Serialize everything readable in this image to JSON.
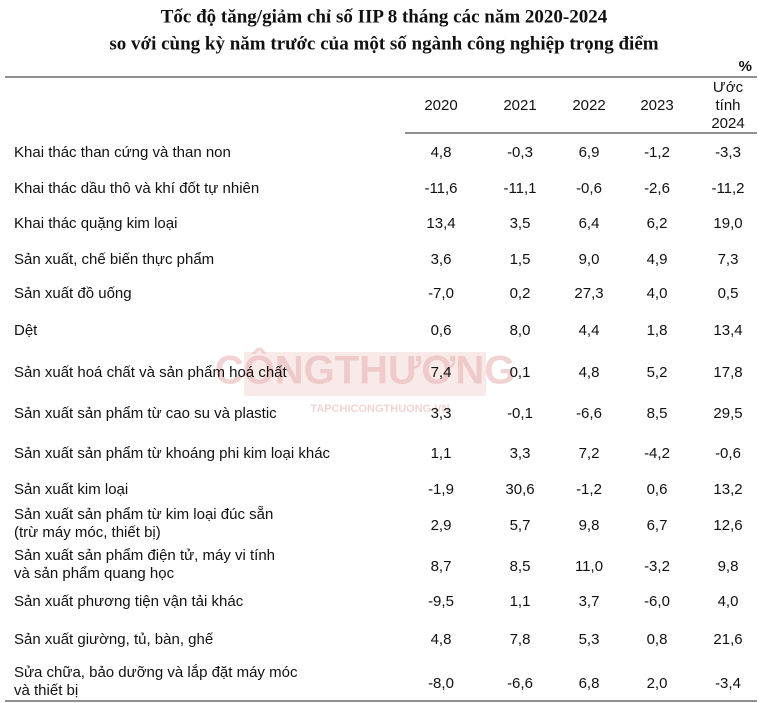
{
  "title": [
    "Tốc độ tăng/giảm chỉ số IIP 8 tháng các năm 2020-2024",
    "so với cùng kỳ năm trước của một số ngành công nghiệp trọng điểm"
  ],
  "unit": "%",
  "watermark": [
    "CÔNGTHƯƠNG",
    "TAPCHICONGTHUONG.VN"
  ],
  "table": {
    "header": [
      [
        "2020"
      ],
      [
        "2021"
      ],
      [
        "2022"
      ],
      [
        "2023"
      ],
      [
        "Ước",
        "tính",
        "2024"
      ]
    ],
    "rows": [
      {
        "label": [
          "Khai thác than cứng và than non"
        ],
        "values": [
          "4,8",
          "-0,3",
          "6,9",
          "-1,2",
          "-3,3"
        ]
      },
      {
        "label": [
          "Khai thác dầu thô và khí đốt tự nhiên"
        ],
        "values": [
          "-11,6",
          "-11,1",
          "-0,6",
          "-2,6",
          "-11,2"
        ]
      },
      {
        "label": [
          "Khai thác quặng kim loại"
        ],
        "values": [
          "13,4",
          "3,5",
          "6,4",
          "6,2",
          "19,0"
        ]
      },
      {
        "label": [
          "Sản xuất, chế biến thực phẩm"
        ],
        "values": [
          "3,6",
          "1,5",
          "9,0",
          "4,9",
          "7,3"
        ]
      },
      {
        "label": [
          "Sản xuất đồ uống"
        ],
        "values": [
          "-7,0",
          "0,2",
          "27,3",
          "4,0",
          "0,5"
        ]
      },
      {
        "label": [
          "Dệt"
        ],
        "values": [
          "0,6",
          "8,0",
          "4,4",
          "1,8",
          "13,4"
        ]
      },
      {
        "label": [
          "Sản xuất hoá chất và sản phẩm hoá chất"
        ],
        "values": [
          "7,4",
          "0,1",
          "4,8",
          "5,2",
          "17,8"
        ]
      },
      {
        "label": [
          "Sản xuất sản phẩm từ cao su và plastic"
        ],
        "values": [
          "3,3",
          "-0,1",
          "-6,6",
          "8,5",
          "29,5"
        ]
      },
      {
        "label": [
          "Sản xuất sản phẩm từ khoáng phi kim loại khác"
        ],
        "values": [
          "1,1",
          "3,3",
          "7,2",
          "-4,2",
          "-0,6"
        ]
      },
      {
        "label": [
          "Sản xuất kim loại"
        ],
        "values": [
          "-1,9",
          "30,6",
          "-1,2",
          "0,6",
          "13,2"
        ]
      },
      {
        "label": [
          "Sản xuất sản phẩm từ kim loại đúc sẵn",
          "(trừ máy móc, thiết bị)"
        ],
        "values": [
          "2,9",
          "5,7",
          "9,8",
          "6,7",
          "12,6"
        ]
      },
      {
        "label": [
          "Sản xuất sản phẩm điện tử, máy vi tính",
          "và sản phẩm quang học"
        ],
        "values": [
          "8,7",
          "8,5",
          "11,0",
          "-3,2",
          "9,8"
        ]
      },
      {
        "label": [
          "Sản xuất phương tiện vận tải khác"
        ],
        "values": [
          "-9,5",
          "1,1",
          "3,7",
          "-6,0",
          "4,0"
        ]
      },
      {
        "label": [
          "Sản xuất giường, tủ, bàn, ghế"
        ],
        "values": [
          "4,8",
          "7,8",
          "5,3",
          "0,8",
          "21,6"
        ]
      },
      {
        "label": [
          "Sửa chữa, bảo dưỡng và lắp đặt máy móc",
          "và thiết bị"
        ],
        "values": [
          "-8,0",
          "-6,6",
          "6,8",
          "2,0",
          "-3,4"
        ]
      }
    ]
  }
}
